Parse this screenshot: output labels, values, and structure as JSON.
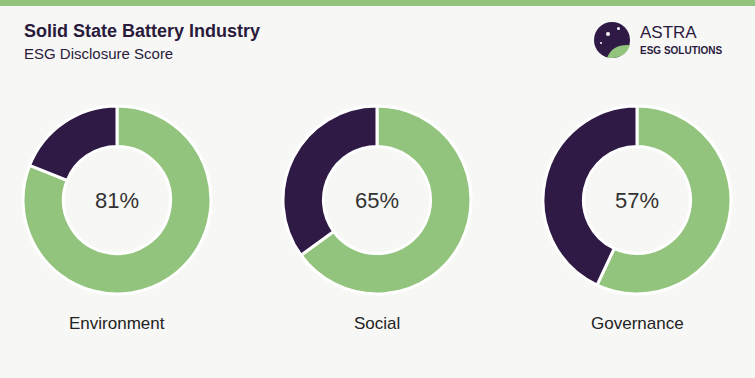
{
  "chart_data": {
    "type": "donut",
    "title": "Solid State Battery Industry",
    "subtitle": "ESG Disclosure Score",
    "categories": [
      "Environment",
      "Social",
      "Governance"
    ],
    "values": [
      81,
      65,
      57
    ],
    "value_labels": [
      "81%",
      "65%",
      "57%"
    ],
    "data_labels": true,
    "color": "#93c47d"
  },
  "logo": {
    "text": "ASTRA",
    "subtext": "ESG SOLUTIONS"
  }
}
